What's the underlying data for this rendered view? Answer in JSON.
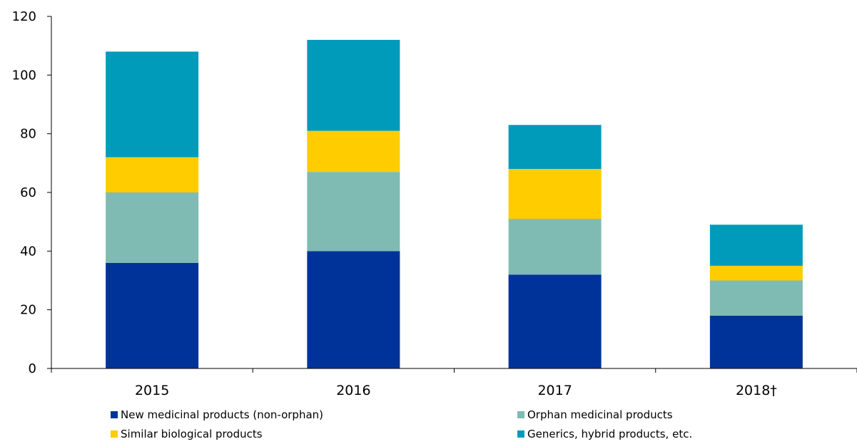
{
  "chart_data": {
    "type": "bar",
    "stacked": true,
    "categories": [
      "2015",
      "2016",
      "2017",
      "2018†"
    ],
    "series": [
      {
        "name": "New medicinal products (non-orphan)",
        "color": "#003399",
        "values": [
          36,
          40,
          32,
          18
        ]
      },
      {
        "name": "Orphan medicinal products",
        "color": "#7fbbb2",
        "values": [
          24,
          27,
          19,
          12
        ]
      },
      {
        "name": "Similar biological products",
        "color": "#ffcc00",
        "values": [
          12,
          14,
          17,
          5
        ]
      },
      {
        "name": "Generics, hybrid products, etc.",
        "color": "#009bbb",
        "values": [
          36,
          31,
          15,
          14
        ]
      }
    ],
    "yticks": [
      0,
      20,
      40,
      60,
      80,
      100,
      120
    ],
    "ylim": [
      0,
      120
    ],
    "grid": false,
    "legend_position": "bottom",
    "title": "",
    "xlabel": "",
    "ylabel": ""
  }
}
